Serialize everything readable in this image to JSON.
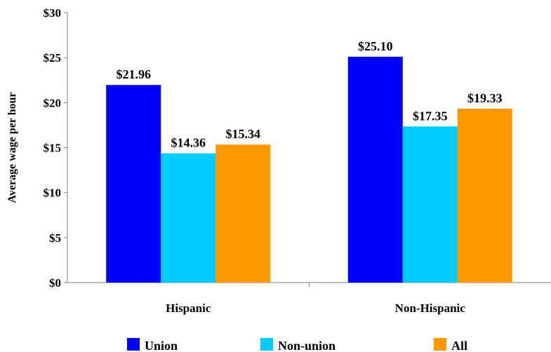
{
  "chart_data": {
    "type": "bar",
    "title": "",
    "xlabel": "",
    "ylabel": "Average wage per hour",
    "ylim": [
      0,
      30
    ],
    "yticks": [
      0,
      5,
      10,
      15,
      20,
      25,
      30
    ],
    "ytick_labels": [
      "$0",
      "$5",
      "$10",
      "$15",
      "$20",
      "$25",
      "$30"
    ],
    "categories": [
      "Hispanic",
      "Non-Hispanic"
    ],
    "series": [
      {
        "name": "Union",
        "color": "#0000ff",
        "values": [
          21.96,
          25.1
        ],
        "labels": [
          "$21.96",
          "$25.10"
        ]
      },
      {
        "name": "Non-union",
        "color": "#00ccff",
        "values": [
          14.36,
          17.35
        ],
        "labels": [
          "$14.36",
          "$17.35"
        ]
      },
      {
        "name": "All",
        "color": "#ff9900",
        "values": [
          15.34,
          19.33
        ],
        "labels": [
          "$15.34",
          "$19.33"
        ]
      }
    ],
    "grid": false,
    "legend_position": "bottom"
  }
}
